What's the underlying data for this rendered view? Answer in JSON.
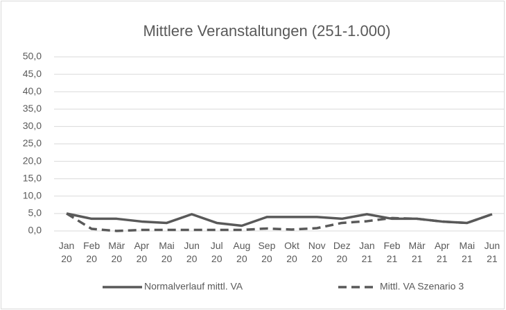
{
  "chart_data": {
    "type": "line",
    "title": "Mittlere Veranstaltungen (251-1.000)",
    "categories": [
      "Jan 20",
      "Feb 20",
      "Mär 20",
      "Apr 20",
      "Mai 20",
      "Jun 20",
      "Jul 20",
      "Aug 20",
      "Sep 20",
      "Okt 20",
      "Nov 20",
      "Dez 20",
      "Jan 21",
      "Feb 21",
      "Mär 21",
      "Apr 21",
      "Mai 21",
      "Jun 21"
    ],
    "series": [
      {
        "name": "Normalverlauf mittl. VA",
        "color": "#595959",
        "dash": false,
        "values": [
          5.0,
          3.5,
          3.5,
          2.7,
          2.3,
          4.8,
          2.3,
          1.5,
          4.0,
          4.0,
          4.0,
          3.5,
          4.8,
          3.5,
          3.5,
          2.7,
          2.3,
          4.8
        ]
      },
      {
        "name": "Mittl. VA Szenario 3",
        "color": "#595959",
        "dash": true,
        "values": [
          5.0,
          0.6,
          0.0,
          0.3,
          0.3,
          0.3,
          0.3,
          0.3,
          0.7,
          0.4,
          0.8,
          2.3,
          2.8,
          3.7,
          3.5,
          2.7,
          2.3,
          4.8
        ]
      }
    ],
    "ylim": [
      0,
      50
    ],
    "yticks": [
      {
        "value": 0,
        "label": "0,0"
      },
      {
        "value": 5,
        "label": "5,0"
      },
      {
        "value": 10,
        "label": "10,0"
      },
      {
        "value": 15,
        "label": "15,0"
      },
      {
        "value": 20,
        "label": "20,0"
      },
      {
        "value": 25,
        "label": "25,0"
      },
      {
        "value": 30,
        "label": "30,0"
      },
      {
        "value": 35,
        "label": "35,0"
      },
      {
        "value": 40,
        "label": "40,0"
      },
      {
        "value": 45,
        "label": "45,0"
      },
      {
        "value": 50,
        "label": "50,0"
      }
    ],
    "grid": true,
    "legend": "bottom"
  }
}
